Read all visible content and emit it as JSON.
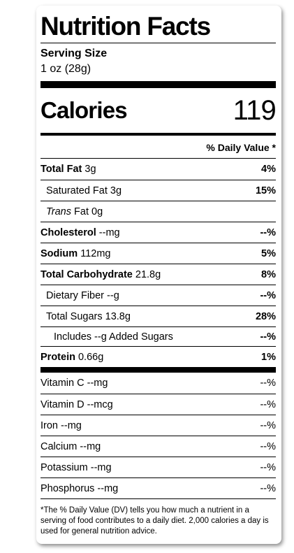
{
  "title": "Nutrition Facts",
  "serving": {
    "label": "Serving Size",
    "value": "1 oz (28g)"
  },
  "calories": {
    "label": "Calories",
    "value": 119
  },
  "dv_header": "% Daily Value *",
  "nutrients": [
    {
      "name": "Total Fat",
      "amount": "3g",
      "dv": "4%",
      "level": 0
    },
    {
      "name": "Saturated Fat",
      "amount": "3g",
      "dv": "15%",
      "level": 1
    },
    {
      "name_italic": "Trans",
      "name": "Fat",
      "amount": "0g",
      "level": 1
    },
    {
      "name": "Cholesterol",
      "amount": "--mg",
      "dv": "--%",
      "level": 0
    },
    {
      "name": "Sodium",
      "amount": "112mg",
      "dv": "5%",
      "level": 0
    },
    {
      "name": "Total Carbohydrate",
      "amount": "21.8g",
      "dv": "8%",
      "level": 0
    },
    {
      "name": "Dietary Fiber",
      "amount": "--g",
      "dv": "--%",
      "level": 1
    },
    {
      "name": "Total Sugars",
      "amount": "13.8g",
      "dv": "28%",
      "level": 1
    },
    {
      "name": "Includes --g Added Sugars",
      "dv": "--%",
      "level": 2
    },
    {
      "name": "Protein",
      "amount": "0.66g",
      "dv": "1%",
      "level": 0
    }
  ],
  "vitamins": [
    {
      "name": "Vitamin C",
      "amount": "--mg",
      "dv": "--%"
    },
    {
      "name": "Vitamin D",
      "amount": "--mcg",
      "dv": "--%"
    },
    {
      "name": "Iron",
      "amount": "--mg",
      "dv": "--%"
    },
    {
      "name": "Calcium",
      "amount": "--mg",
      "dv": "--%"
    },
    {
      "name": "Potassium",
      "amount": "--mg",
      "dv": "--%"
    },
    {
      "name": "Phosphorus",
      "amount": "--mg",
      "dv": "--%"
    }
  ],
  "footnote": "*The % Daily Value (DV) tells you how much a nutrient in a serving of food contributes to a daily diet. 2,000 calories a day is used for general nutrition advice."
}
